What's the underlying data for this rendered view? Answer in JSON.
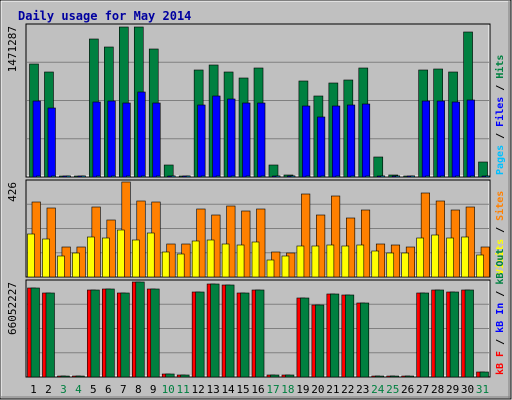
{
  "chart_data": {
    "type": "bar",
    "title": "Daily usage for May 2014",
    "categories": [
      "1",
      "2",
      "3",
      "4",
      "5",
      "6",
      "7",
      "8",
      "9",
      "10",
      "11",
      "12",
      "13",
      "14",
      "15",
      "16",
      "17",
      "18",
      "19",
      "20",
      "21",
      "22",
      "23",
      "24",
      "25",
      "26",
      "27",
      "28",
      "29",
      "30",
      "31"
    ],
    "weekend_days": [
      "3",
      "4",
      "10",
      "11",
      "17",
      "18",
      "24",
      "25",
      "31"
    ],
    "colors": {
      "title": "#0000a0",
      "frame_bg": "#c0c0c0",
      "panel_bg": "#c0c0c0",
      "grid": "#808080",
      "hits": "#008040",
      "files": "#0000ff",
      "pages": "#00c0ff",
      "visits": "#ffff00",
      "sites": "#ff8000",
      "kb_in": "#ff0000",
      "kb_out": "#008040",
      "weekday_label": "#000000",
      "weekend_label": "#008040"
    },
    "panels": [
      {
        "id": "hits-panel",
        "max_label": "1471287",
        "ymax": 1471287,
        "legend": [
          {
            "text": "Pages",
            "color": "#00c0ff"
          },
          {
            "text": " / ",
            "color": "#000000"
          },
          {
            "text": "Files",
            "color": "#0000ff"
          },
          {
            "text": " / ",
            "color": "#000000"
          },
          {
            "text": "Hits",
            "color": "#008040"
          }
        ],
        "series": [
          {
            "name": "Hits",
            "color": "#008040",
            "values": [
              1103000,
              1019000,
              13000,
              11000,
              1342000,
              1263000,
              1458000,
              1463000,
              1249000,
              118000,
              12000,
              1038000,
              1090000,
              1020000,
              961000,
              1066000,
              119000,
              18000,
              932000,
              789000,
              920000,
              942000,
              1060000,
              194000,
              16000,
              13000,
              1040000,
              1051000,
              1023000,
              1408000,
              146000
            ]
          },
          {
            "name": "Files",
            "color": "#0000ff",
            "values": [
              741000,
              676000,
              8000,
              6000,
              733000,
              744000,
              725000,
              824000,
              717000,
              10000,
              6000,
              705000,
              789000,
              761000,
              717000,
              722000,
              11000,
              6000,
              688000,
              585000,
              690000,
              700000,
              709000,
              10000,
              7000,
              6000,
              743000,
              739000,
              728000,
              755000,
              12000
            ]
          },
          {
            "name": "Pages",
            "color": "#00c0ff",
            "values": [
              5000,
              5000,
              2000,
              2000,
              5000,
              5000,
              5000,
              6000,
              5000,
              2000,
              2000,
              5000,
              5000,
              5000,
              5000,
              5000,
              2000,
              2000,
              5000,
              5000,
              5000,
              5000,
              5000,
              2000,
              2000,
              2000,
              5000,
              5000,
              5000,
              5000,
              2000
            ]
          }
        ]
      },
      {
        "id": "visits-panel",
        "max_label": "426",
        "ymax": 426,
        "legend": [
          {
            "text": "Visits",
            "color": "#ffff00"
          },
          {
            "text": " / ",
            "color": "#000000"
          },
          {
            "text": "Sites",
            "color": "#ff8000"
          }
        ],
        "series": [
          {
            "name": "Sites",
            "color": "#ff8000",
            "values": [
              338,
              309,
              135,
              135,
              313,
              257,
              426,
              343,
              338,
              148,
              148,
              304,
              280,
              317,
              295,
              303,
              114,
              107,
              372,
              278,
              363,
              263,
              300,
              146,
              142,
              133,
              378,
              340,
              301,
              313,
              133
            ]
          },
          {
            "name": "Visits",
            "color": "#ffff00",
            "values": [
              191,
              171,
              96,
              107,
              181,
              174,
              209,
              167,
              197,
              112,
              102,
              160,
              164,
              150,
              143,
              156,
              75,
              95,
              141,
              139,
              142,
              138,
              145,
              117,
              107,
              107,
              174,
              187,
              177,
              179,
              97
            ]
          }
        ]
      },
      {
        "id": "kbytes-panel",
        "max_label": "66052227",
        "ymax": 66052227,
        "legend": [
          {
            "text": "kB F",
            "color": "#ff0000"
          },
          {
            "text": " / ",
            "color": "#000000"
          },
          {
            "text": "kB In",
            "color": "#0000ff"
          },
          {
            "text": " / ",
            "color": "#000000"
          },
          {
            "text": "kB Out",
            "color": "#008040"
          }
        ],
        "series": [
          {
            "name": "kB F",
            "color": "#ff0000",
            "values": [
              61600000,
              58700000,
              900000,
              800000,
              60400000,
              60900000,
              58500000,
              66052227,
              61400000,
              1800000,
              1200000,
              59000000,
              64700000,
              64100000,
              58300000,
              60800000,
              1400000,
              1200000,
              55200000,
              49900000,
              57900000,
              56900000,
              51600000,
              900000,
              800000,
              700000,
              58500000,
              60200000,
              58800000,
              60700000,
              3600000
            ]
          },
          {
            "name": "kB In",
            "color": "#0000ff",
            "values": [
              0,
              0,
              0,
              0,
              0,
              0,
              0,
              0,
              0,
              0,
              0,
              0,
              0,
              0,
              0,
              0,
              0,
              0,
              0,
              0,
              0,
              0,
              0,
              0,
              0,
              0,
              0,
              0,
              0,
              0,
              0
            ]
          },
          {
            "name": "kB Out",
            "color": "#008040",
            "values": [
              61600000,
              58700000,
              900000,
              800000,
              60400000,
              60900000,
              58500000,
              66052227,
              61400000,
              1800000,
              1200000,
              59000000,
              64700000,
              64100000,
              58300000,
              60800000,
              1400000,
              1200000,
              55200000,
              49900000,
              57900000,
              56900000,
              51600000,
              900000,
              800000,
              700000,
              58500000,
              60200000,
              58800000,
              60700000,
              3600000
            ]
          }
        ]
      }
    ]
  }
}
